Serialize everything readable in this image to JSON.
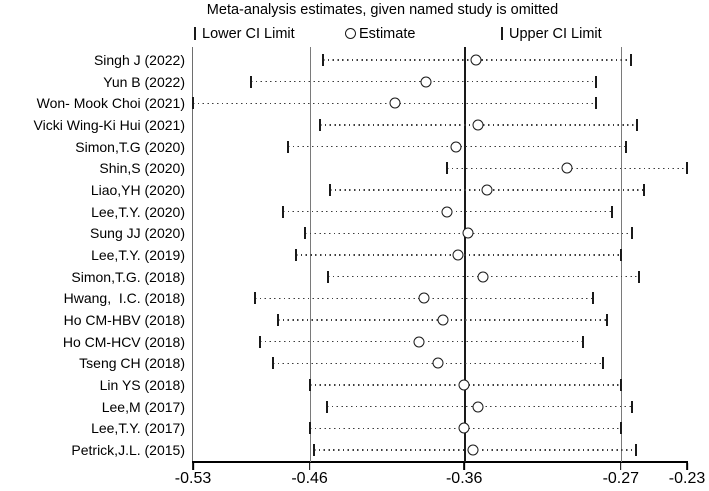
{
  "title": "Meta-analysis estimates, given named study is omitted",
  "legend": {
    "lower": "Lower CI Limit",
    "estimate": "Estimate",
    "upper": "Upper CI Limit"
  },
  "colors": {
    "background": "#ffffff",
    "text": "#000000",
    "center_line": "#1a1a1a",
    "side_lines": "#7a7a7a",
    "dotted_line": "#3c3c3c",
    "marker": "#1a1a1a"
  },
  "chart_data": {
    "type": "scatter",
    "subtype": "leave-one-out-sensitivity-forest",
    "title": "Meta-analysis estimates, given named study is omitted",
    "xlabel": "",
    "ylabel": "",
    "xlim": [
      -0.53,
      -0.23
    ],
    "grid": "vertical-reference-lines-only",
    "legend_position": "top",
    "axis": {
      "tick_labels": [
        "-0.53",
        "-0.46",
        "-0.36",
        "-0.27",
        "-0.23"
      ],
      "tick_values": [
        -0.53,
        -0.46,
        -0.36,
        -0.27,
        -0.23
      ],
      "tick_positions_pct": [
        0,
        23.6,
        54.9,
        86.6,
        100
      ],
      "reference_lines": [
        {
          "value": -0.46,
          "role": "overall-lower-ci",
          "style": "side"
        },
        {
          "value": -0.36,
          "role": "overall-estimate",
          "style": "center"
        },
        {
          "value": -0.27,
          "role": "overall-upper-ci",
          "style": "side"
        }
      ]
    },
    "studies": [
      {
        "label": "Singh J (2022)",
        "lower": -0.451,
        "estimate": -0.353,
        "upper": -0.264
      },
      {
        "label": "Yun B (2022)",
        "lower": -0.495,
        "estimate": -0.385,
        "upper": -0.284
      },
      {
        "label": "Won- Mook Choi (2021)",
        "lower": -0.53,
        "estimate": -0.405,
        "upper": -0.284
      },
      {
        "label": "Vicki Wing-Ki Hui (2021)",
        "lower": -0.453,
        "estimate": -0.352,
        "upper": -0.26
      },
      {
        "label": "Simon,T.G (2020)",
        "lower": -0.473,
        "estimate": -0.365,
        "upper": -0.267
      },
      {
        "label": "Shin,S (2020)",
        "lower": -0.371,
        "estimate": -0.301,
        "upper": -0.23
      },
      {
        "label": "Liao,YH (2020)",
        "lower": -0.447,
        "estimate": -0.347,
        "upper": -0.256
      },
      {
        "label": "Lee,T.Y. (2020)",
        "lower": -0.476,
        "estimate": -0.371,
        "upper": -0.275
      },
      {
        "label": "Sung JJ (2020)",
        "lower": -0.463,
        "estimate": -0.358,
        "upper": -0.263
      },
      {
        "label": "Lee,T.Y. (2019)",
        "lower": -0.468,
        "estimate": -0.364,
        "upper": -0.27
      },
      {
        "label": "Simon,T.G. (2018)",
        "lower": -0.448,
        "estimate": -0.349,
        "upper": -0.259
      },
      {
        "label": "Hwang,  I.C. (2018)",
        "lower": -0.493,
        "estimate": -0.386,
        "upper": -0.286
      },
      {
        "label": "Ho CM-HBV (2018)",
        "lower": -0.479,
        "estimate": -0.374,
        "upper": -0.278
      },
      {
        "label": "Ho CM-HCV (2018)",
        "lower": -0.49,
        "estimate": -0.389,
        "upper": -0.292
      },
      {
        "label": "Tseng CH (2018)",
        "lower": -0.482,
        "estimate": -0.377,
        "upper": -0.28
      },
      {
        "label": "Lin YS (2018)",
        "lower": -0.46,
        "estimate": -0.36,
        "upper": -0.27
      },
      {
        "label": "Lee,M (2017)",
        "lower": -0.449,
        "estimate": -0.352,
        "upper": -0.263
      },
      {
        "label": "Lee,T.Y. (2017)",
        "lower": -0.46,
        "estimate": -0.36,
        "upper": -0.27
      },
      {
        "label": "Petrick,J.L. (2015)",
        "lower": -0.457,
        "estimate": -0.355,
        "upper": -0.261
      }
    ]
  }
}
